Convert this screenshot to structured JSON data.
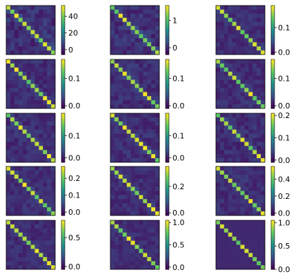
{
  "figure": {
    "layout": {
      "rows": 5,
      "cols": 3
    },
    "colormap": "viridis",
    "colormap_stops": [
      "#440154",
      "#3b528b",
      "#21918c",
      "#5ec962",
      "#fde725"
    ]
  },
  "chart_data": [
    {
      "type": "heatmap",
      "n": 12,
      "vmin": -6,
      "vmax": 53,
      "diag": 8,
      "noise": 9,
      "ticks": [
        0,
        20,
        40
      ],
      "tick_labels": [
        "0",
        "20",
        "40"
      ],
      "grid": false,
      "colorbar": "right"
    },
    {
      "type": "heatmap",
      "n": 12,
      "vmin": -0.25,
      "vmax": 1.55,
      "diag": 0.35,
      "noise": 0.25,
      "ticks": [
        0,
        1
      ],
      "tick_labels": [
        "0",
        "1"
      ],
      "grid": false,
      "colorbar": "right"
    },
    {
      "type": "heatmap",
      "n": 12,
      "vmin": -0.01,
      "vmax": 0.19,
      "diag": 0.12,
      "noise": 0.02,
      "ticks": [
        0.0,
        0.1
      ],
      "tick_labels": [
        "0.0",
        "0.1"
      ],
      "grid": false,
      "colorbar": "right"
    },
    {
      "type": "heatmap",
      "n": 12,
      "vmin": -0.01,
      "vmax": 0.17,
      "diag": 0.12,
      "noise": 0.02,
      "ticks": [
        0.0,
        0.1
      ],
      "tick_labels": [
        "0.0",
        "0.1"
      ],
      "grid": false,
      "colorbar": "right"
    },
    {
      "type": "heatmap",
      "n": 12,
      "vmin": -0.01,
      "vmax": 0.17,
      "diag": 0.12,
      "noise": 0.02,
      "ticks": [
        0.0,
        0.1
      ],
      "tick_labels": [
        "0.0",
        "0.1"
      ],
      "grid": false,
      "colorbar": "right"
    },
    {
      "type": "heatmap",
      "n": 12,
      "vmin": -0.01,
      "vmax": 0.17,
      "diag": 0.12,
      "noise": 0.02,
      "ticks": [
        0.0,
        0.1
      ],
      "tick_labels": [
        "0.0",
        "0.1"
      ],
      "grid": false,
      "colorbar": "right"
    },
    {
      "type": "heatmap",
      "n": 12,
      "vmin": -0.02,
      "vmax": 0.2,
      "diag": 0.15,
      "noise": 0.025,
      "ticks": [
        0.0,
        0.1
      ],
      "tick_labels": [
        "0.0",
        "0.1"
      ],
      "grid": false,
      "colorbar": "right"
    },
    {
      "type": "heatmap",
      "n": 12,
      "vmin": -0.02,
      "vmax": 0.2,
      "diag": 0.15,
      "noise": 0.025,
      "ticks": [
        0.0,
        0.1
      ],
      "tick_labels": [
        "0.0",
        "0.1"
      ],
      "grid": false,
      "colorbar": "right"
    },
    {
      "type": "heatmap",
      "n": 12,
      "vmin": -0.01,
      "vmax": 0.21,
      "diag": 0.16,
      "noise": 0.025,
      "ticks": [
        0.0,
        0.1,
        0.2
      ],
      "tick_labels": [
        "0.0",
        "0.1",
        "0.2"
      ],
      "grid": false,
      "colorbar": "right"
    },
    {
      "type": "heatmap",
      "n": 12,
      "vmin": -0.02,
      "vmax": 0.27,
      "diag": 0.2,
      "noise": 0.03,
      "ticks": [
        0.0,
        0.1,
        0.2
      ],
      "tick_labels": [
        "0.0",
        "0.1",
        "0.2"
      ],
      "grid": false,
      "colorbar": "right"
    },
    {
      "type": "heatmap",
      "n": 12,
      "vmin": -0.02,
      "vmax": 0.35,
      "diag": 0.27,
      "noise": 0.04,
      "ticks": [
        0.0,
        0.2
      ],
      "tick_labels": [
        "0.0",
        "0.2"
      ],
      "grid": false,
      "colorbar": "right"
    },
    {
      "type": "heatmap",
      "n": 12,
      "vmin": -0.03,
      "vmax": 0.55,
      "diag": 0.42,
      "noise": 0.06,
      "ticks": [
        0.0,
        0.2,
        0.4
      ],
      "tick_labels": [
        "0.0",
        "0.2",
        "0.4"
      ],
      "grid": false,
      "colorbar": "right"
    },
    {
      "type": "heatmap",
      "n": 12,
      "vmin": -0.05,
      "vmax": 0.8,
      "diag": 0.6,
      "noise": 0.08,
      "ticks": [
        0.0,
        0.5
      ],
      "tick_labels": [
        "0.0",
        "0.5"
      ],
      "grid": false,
      "colorbar": "right"
    },
    {
      "type": "heatmap",
      "n": 12,
      "vmin": -0.05,
      "vmax": 1.05,
      "diag": 0.75,
      "noise": 0.1,
      "ticks": [
        0.0,
        0.5,
        1.0
      ],
      "tick_labels": [
        "0.0",
        "0.5",
        "1.0"
      ],
      "grid": false,
      "colorbar": "right"
    },
    {
      "type": "heatmap",
      "n": 12,
      "vmin": 0.0,
      "vmax": 1.05,
      "diag": 0.95,
      "noise": 0.01,
      "ticks": [
        0.0,
        0.5,
        1.0
      ],
      "tick_labels": [
        "0.0",
        "0.5",
        "1.0"
      ],
      "grid": false,
      "colorbar": "right"
    }
  ]
}
